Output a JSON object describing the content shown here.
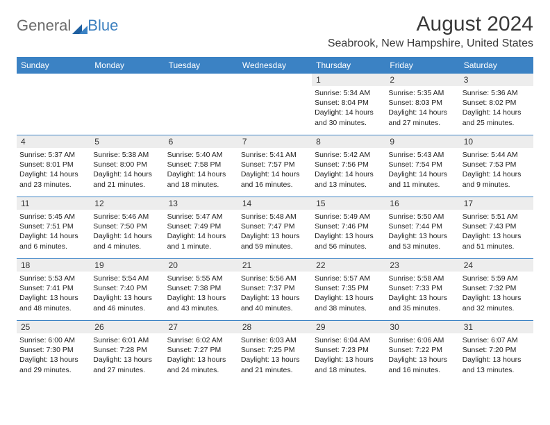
{
  "logo": {
    "word1": "General",
    "word2": "Blue"
  },
  "title": "August 2024",
  "location": "Seabrook, New Hampshire, United States",
  "colors": {
    "header_bg": "#3b82c4",
    "header_text": "#ffffff",
    "daynum_bg": "#ededed",
    "border": "#3b82c4",
    "logo_gray": "#6b6b6b",
    "logo_blue": "#3b7fbf"
  },
  "day_names": [
    "Sunday",
    "Monday",
    "Tuesday",
    "Wednesday",
    "Thursday",
    "Friday",
    "Saturday"
  ],
  "weeks": [
    [
      null,
      null,
      null,
      null,
      {
        "n": "1",
        "r": "5:34 AM",
        "s": "8:04 PM",
        "d": "14 hours and 30 minutes."
      },
      {
        "n": "2",
        "r": "5:35 AM",
        "s": "8:03 PM",
        "d": "14 hours and 27 minutes."
      },
      {
        "n": "3",
        "r": "5:36 AM",
        "s": "8:02 PM",
        "d": "14 hours and 25 minutes."
      }
    ],
    [
      {
        "n": "4",
        "r": "5:37 AM",
        "s": "8:01 PM",
        "d": "14 hours and 23 minutes."
      },
      {
        "n": "5",
        "r": "5:38 AM",
        "s": "8:00 PM",
        "d": "14 hours and 21 minutes."
      },
      {
        "n": "6",
        "r": "5:40 AM",
        "s": "7:58 PM",
        "d": "14 hours and 18 minutes."
      },
      {
        "n": "7",
        "r": "5:41 AM",
        "s": "7:57 PM",
        "d": "14 hours and 16 minutes."
      },
      {
        "n": "8",
        "r": "5:42 AM",
        "s": "7:56 PM",
        "d": "14 hours and 13 minutes."
      },
      {
        "n": "9",
        "r": "5:43 AM",
        "s": "7:54 PM",
        "d": "14 hours and 11 minutes."
      },
      {
        "n": "10",
        "r": "5:44 AM",
        "s": "7:53 PM",
        "d": "14 hours and 9 minutes."
      }
    ],
    [
      {
        "n": "11",
        "r": "5:45 AM",
        "s": "7:51 PM",
        "d": "14 hours and 6 minutes."
      },
      {
        "n": "12",
        "r": "5:46 AM",
        "s": "7:50 PM",
        "d": "14 hours and 4 minutes."
      },
      {
        "n": "13",
        "r": "5:47 AM",
        "s": "7:49 PM",
        "d": "14 hours and 1 minute."
      },
      {
        "n": "14",
        "r": "5:48 AM",
        "s": "7:47 PM",
        "d": "13 hours and 59 minutes."
      },
      {
        "n": "15",
        "r": "5:49 AM",
        "s": "7:46 PM",
        "d": "13 hours and 56 minutes."
      },
      {
        "n": "16",
        "r": "5:50 AM",
        "s": "7:44 PM",
        "d": "13 hours and 53 minutes."
      },
      {
        "n": "17",
        "r": "5:51 AM",
        "s": "7:43 PM",
        "d": "13 hours and 51 minutes."
      }
    ],
    [
      {
        "n": "18",
        "r": "5:53 AM",
        "s": "7:41 PM",
        "d": "13 hours and 48 minutes."
      },
      {
        "n": "19",
        "r": "5:54 AM",
        "s": "7:40 PM",
        "d": "13 hours and 46 minutes."
      },
      {
        "n": "20",
        "r": "5:55 AM",
        "s": "7:38 PM",
        "d": "13 hours and 43 minutes."
      },
      {
        "n": "21",
        "r": "5:56 AM",
        "s": "7:37 PM",
        "d": "13 hours and 40 minutes."
      },
      {
        "n": "22",
        "r": "5:57 AM",
        "s": "7:35 PM",
        "d": "13 hours and 38 minutes."
      },
      {
        "n": "23",
        "r": "5:58 AM",
        "s": "7:33 PM",
        "d": "13 hours and 35 minutes."
      },
      {
        "n": "24",
        "r": "5:59 AM",
        "s": "7:32 PM",
        "d": "13 hours and 32 minutes."
      }
    ],
    [
      {
        "n": "25",
        "r": "6:00 AM",
        "s": "7:30 PM",
        "d": "13 hours and 29 minutes."
      },
      {
        "n": "26",
        "r": "6:01 AM",
        "s": "7:28 PM",
        "d": "13 hours and 27 minutes."
      },
      {
        "n": "27",
        "r": "6:02 AM",
        "s": "7:27 PM",
        "d": "13 hours and 24 minutes."
      },
      {
        "n": "28",
        "r": "6:03 AM",
        "s": "7:25 PM",
        "d": "13 hours and 21 minutes."
      },
      {
        "n": "29",
        "r": "6:04 AM",
        "s": "7:23 PM",
        "d": "13 hours and 18 minutes."
      },
      {
        "n": "30",
        "r": "6:06 AM",
        "s": "7:22 PM",
        "d": "13 hours and 16 minutes."
      },
      {
        "n": "31",
        "r": "6:07 AM",
        "s": "7:20 PM",
        "d": "13 hours and 13 minutes."
      }
    ]
  ],
  "labels": {
    "sunrise": "Sunrise:",
    "sunset": "Sunset:",
    "daylight": "Daylight:"
  }
}
